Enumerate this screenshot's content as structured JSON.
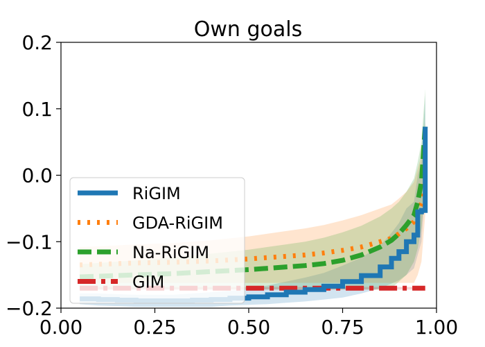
{
  "chart_data": {
    "type": "line",
    "title": "Own goals",
    "xlabel": "",
    "ylabel": "",
    "xlim": [
      0.0,
      1.0
    ],
    "ylim": [
      -0.2,
      0.2
    ],
    "xticks": [
      0.0,
      0.25,
      0.5,
      0.75,
      1.0
    ],
    "xtick_labels": [
      "0.00",
      "0.25",
      "0.50",
      "0.75",
      "1.00"
    ],
    "yticks": [
      -0.2,
      -0.1,
      0.0,
      0.1,
      0.2
    ],
    "ytick_labels": [
      "−0.2",
      "−0.1",
      "0.0",
      "0.1",
      "0.2"
    ],
    "grid": false,
    "legend_position": "lower-left",
    "series": [
      {
        "name": "RiGIM",
        "color": "#1f77b4",
        "style": "solid",
        "x": [
          0.05,
          0.1,
          0.15,
          0.2,
          0.25,
          0.3,
          0.35,
          0.4,
          0.45,
          0.5,
          0.55,
          0.6,
          0.65,
          0.7,
          0.75,
          0.8,
          0.85,
          0.88,
          0.9,
          0.92,
          0.94,
          0.95,
          0.96,
          0.97
        ],
        "y": [
          -0.186,
          -0.187,
          -0.188,
          -0.189,
          -0.189,
          -0.189,
          -0.188,
          -0.187,
          -0.185,
          -0.183,
          -0.18,
          -0.176,
          -0.172,
          -0.167,
          -0.16,
          -0.151,
          -0.138,
          -0.125,
          -0.115,
          -0.1,
          -0.09,
          -0.055,
          -0.053,
          0.073
        ],
        "band_low": [
          -0.194,
          -0.196,
          -0.197,
          -0.198,
          -0.198,
          -0.198,
          -0.198,
          -0.198,
          -0.196,
          -0.195,
          -0.194,
          -0.192,
          -0.19,
          -0.187,
          -0.184,
          -0.178,
          -0.17,
          -0.163,
          -0.158,
          -0.15,
          -0.14,
          -0.12,
          -0.1,
          -0.02
        ],
        "band_high": [
          -0.178,
          -0.178,
          -0.179,
          -0.18,
          -0.18,
          -0.18,
          -0.178,
          -0.176,
          -0.174,
          -0.171,
          -0.166,
          -0.16,
          -0.154,
          -0.147,
          -0.136,
          -0.124,
          -0.106,
          -0.087,
          -0.072,
          -0.05,
          -0.04,
          0.0,
          0.02,
          0.12
        ]
      },
      {
        "name": "GDA-RiGIM",
        "color": "#ff7f0e",
        "style": "dotted",
        "x": [
          0.05,
          0.1,
          0.2,
          0.3,
          0.4,
          0.5,
          0.55,
          0.6,
          0.65,
          0.7,
          0.75,
          0.8,
          0.85,
          0.88,
          0.9,
          0.92,
          0.94,
          0.95,
          0.96,
          0.97
        ],
        "y": [
          -0.135,
          -0.134,
          -0.132,
          -0.131,
          -0.129,
          -0.126,
          -0.124,
          -0.122,
          -0.12,
          -0.117,
          -0.113,
          -0.108,
          -0.1,
          -0.095,
          -0.088,
          -0.08,
          -0.07,
          -0.055,
          -0.042,
          0.012
        ],
        "band_low": [
          -0.162,
          -0.162,
          -0.162,
          -0.162,
          -0.162,
          -0.162,
          -0.162,
          -0.162,
          -0.162,
          -0.162,
          -0.162,
          -0.162,
          -0.162,
          -0.162,
          -0.162,
          -0.162,
          -0.162,
          -0.15,
          -0.13,
          -0.06
        ],
        "band_high": [
          -0.108,
          -0.107,
          -0.104,
          -0.102,
          -0.098,
          -0.092,
          -0.088,
          -0.084,
          -0.08,
          -0.075,
          -0.068,
          -0.06,
          -0.05,
          -0.044,
          -0.035,
          -0.025,
          -0.01,
          0.01,
          0.03,
          0.08
        ]
      },
      {
        "name": "Na-RiGIM",
        "color": "#2ca02c",
        "style": "dashed",
        "x": [
          0.05,
          0.1,
          0.2,
          0.3,
          0.4,
          0.5,
          0.55,
          0.6,
          0.65,
          0.7,
          0.75,
          0.8,
          0.85,
          0.88,
          0.9,
          0.92,
          0.94,
          0.95,
          0.96,
          0.97
        ],
        "y": [
          -0.153,
          -0.152,
          -0.15,
          -0.148,
          -0.145,
          -0.142,
          -0.14,
          -0.138,
          -0.136,
          -0.133,
          -0.128,
          -0.12,
          -0.108,
          -0.098,
          -0.088,
          -0.075,
          -0.06,
          -0.04,
          -0.01,
          0.073
        ],
        "band_low": [
          -0.172,
          -0.172,
          -0.172,
          -0.172,
          -0.172,
          -0.172,
          -0.172,
          -0.172,
          -0.172,
          -0.172,
          -0.172,
          -0.172,
          -0.172,
          -0.17,
          -0.16,
          -0.15,
          -0.13,
          -0.11,
          -0.08,
          -0.02
        ],
        "band_high": [
          -0.134,
          -0.132,
          -0.128,
          -0.124,
          -0.118,
          -0.112,
          -0.108,
          -0.104,
          -0.1,
          -0.094,
          -0.086,
          -0.076,
          -0.062,
          -0.05,
          -0.04,
          -0.025,
          -0.005,
          0.02,
          0.05,
          0.13
        ]
      },
      {
        "name": "GIM",
        "color": "#d62728",
        "style": "dashdot",
        "x": [
          0.05,
          0.97
        ],
        "y": [
          -0.17,
          -0.17
        ],
        "band_low": [
          -0.172,
          -0.172
        ],
        "band_high": [
          -0.168,
          -0.168
        ]
      }
    ]
  }
}
